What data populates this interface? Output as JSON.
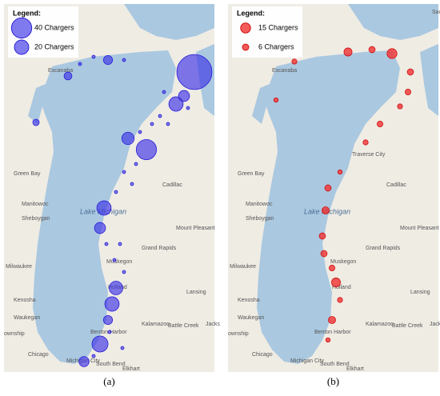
{
  "panels": [
    {
      "caption": "(a)",
      "legend": {
        "title": "Legend:",
        "items": [
          {
            "label": "40 Chargers",
            "chargers": 40
          },
          {
            "label": "20 Chargers",
            "chargers": 20
          }
        ]
      },
      "labels": [
        "Escanaba",
        "Green Bay",
        "Manitowoc",
        "Sheboygan",
        "Lake Michigan",
        "Cadillac",
        "Mount Pleasant",
        "Milwaukee",
        "Muskegon",
        "Grand Rapids",
        "Kenosha",
        "Holland",
        "Lansing",
        "Waukegan",
        "Kalamazoo",
        "Battle Creek",
        "Jacks",
        "Benton Harbor",
        "ownship",
        "Chicago",
        "Michigan City",
        "South Bend",
        "Elkhart"
      ],
      "markers": [
        {
          "chargers": 120
        },
        {
          "chargers": 20
        },
        {
          "chargers": 12
        },
        {
          "chargers": 40
        },
        {
          "chargers": 15
        },
        {
          "chargers": 20
        },
        {
          "chargers": 12
        },
        {
          "chargers": 18
        },
        {
          "chargers": 20
        },
        {
          "chargers": 8
        },
        {
          "chargers": 25
        },
        {
          "chargers": 10
        },
        {
          "chargers": 8
        },
        {
          "chargers": 6
        },
        {
          "chargers": 4
        },
        {
          "chargers": 1
        },
        {
          "chargers": 1
        },
        {
          "chargers": 1
        },
        {
          "chargers": 1
        },
        {
          "chargers": 1
        },
        {
          "chargers": 1
        },
        {
          "chargers": 1
        },
        {
          "chargers": 1
        },
        {
          "chargers": 1
        },
        {
          "chargers": 1
        },
        {
          "chargers": 1
        },
        {
          "chargers": 1
        },
        {
          "chargers": 1
        },
        {
          "chargers": 1
        },
        {
          "chargers": 1
        },
        {
          "chargers": 1
        },
        {
          "chargers": 1
        },
        {
          "chargers": 1
        },
        {
          "chargers": 1
        },
        {
          "chargers": 1
        }
      ]
    },
    {
      "caption": "(b)",
      "legend": {
        "title": "Legend:",
        "items": [
          {
            "label": "15 Chargers",
            "chargers": 15
          },
          {
            "label": "6 Chargers",
            "chargers": 6
          }
        ]
      },
      "labels": [
        "Escanaba",
        "Saul",
        "Traverse City",
        "Green Bay",
        "Manitowoc",
        "Sheboygan",
        "Lake Michigan",
        "Cadillac",
        "Mount Pleasant",
        "Milwaukee",
        "Muskegon",
        "Grand Rapids",
        "Kenosha",
        "Holland",
        "Lansing",
        "Waukegan",
        "Kalamazoo",
        "Battle Creek",
        "Jacks",
        "Benton Harbor",
        "ownship",
        "Chicago",
        "Michigan City",
        "South Bend",
        "Elkhart"
      ],
      "markers": [
        {
          "chargers": 4
        },
        {
          "chargers": 10
        },
        {
          "chargers": 6
        },
        {
          "chargers": 15
        },
        {
          "chargers": 6
        },
        {
          "chargers": 5
        },
        {
          "chargers": 4
        },
        {
          "chargers": 5
        },
        {
          "chargers": 4
        },
        {
          "chargers": 3
        },
        {
          "chargers": 6
        },
        {
          "chargers": 8
        },
        {
          "chargers": 6
        },
        {
          "chargers": 6
        },
        {
          "chargers": 5
        },
        {
          "chargers": 12
        },
        {
          "chargers": 4
        },
        {
          "chargers": 8
        },
        {
          "chargers": 3
        },
        {
          "chargers": 3
        }
      ]
    }
  ]
}
